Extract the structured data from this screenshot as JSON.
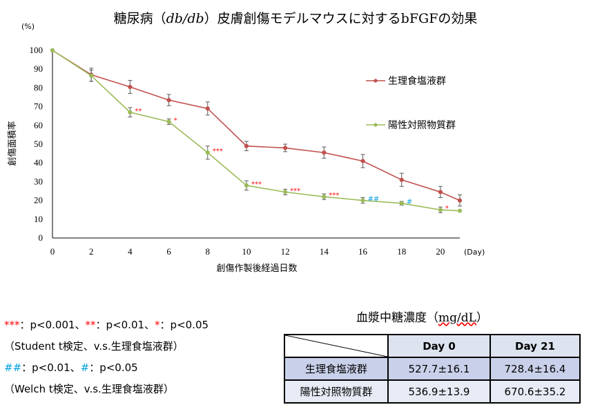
{
  "chart_data": {
    "type": "line",
    "title_pre": "糖尿病（",
    "title_italic": "db/db",
    "title_post": "）皮膚創傷モデルマウスに対するbFGFの効果",
    "xlabel": "創傷作製後経過日数",
    "ylabel": "創傷面積率",
    "x_unit": "(Day)",
    "y_unit": "(%)",
    "xlim": [
      0,
      21
    ],
    "ylim": [
      0,
      100
    ],
    "x_ticks": [
      0,
      2,
      4,
      6,
      8,
      10,
      12,
      14,
      16,
      18,
      20
    ],
    "y_ticks": [
      0,
      10,
      20,
      30,
      40,
      50,
      60,
      70,
      80,
      90,
      100
    ],
    "legend_position": "right",
    "series": [
      {
        "name": "生理食塩液群",
        "color": "#c0504d",
        "x": [
          0,
          2,
          4,
          6,
          8,
          10,
          12,
          14,
          16,
          18,
          20,
          21
        ],
        "y": [
          100,
          87,
          80.5,
          73.5,
          69,
          49,
          48,
          45.5,
          41,
          31,
          24.5,
          20
        ],
        "err": [
          0,
          3.5,
          3.5,
          3,
          3.5,
          2.5,
          2,
          3,
          3.5,
          3.5,
          3,
          3
        ]
      },
      {
        "name": "陽性対照物質群",
        "color": "#9bbb59",
        "x": [
          0,
          2,
          4,
          6,
          8,
          10,
          12,
          14,
          16,
          18,
          20,
          21
        ],
        "y": [
          100,
          86.5,
          67,
          62,
          45.5,
          28,
          24.5,
          22,
          20,
          18.5,
          15,
          14.5
        ],
        "err": [
          0,
          3,
          2.5,
          1.5,
          3.5,
          2.5,
          1.5,
          1.5,
          1.5,
          1,
          1.5,
          0
        ],
        "significance": [
          {
            "x": 4,
            "y": 67,
            "label": "**",
            "color": "#ff0000"
          },
          {
            "x": 6,
            "y": 62,
            "label": "*",
            "color": "#ff0000"
          },
          {
            "x": 8,
            "y": 45.5,
            "label": "***",
            "color": "#ff0000"
          },
          {
            "x": 10,
            "y": 28,
            "label": "***",
            "color": "#ff0000"
          },
          {
            "x": 12,
            "y": 24.5,
            "label": "***",
            "color": "#ff0000"
          },
          {
            "x": 14,
            "y": 22,
            "label": "***",
            "color": "#ff0000"
          },
          {
            "x": 16,
            "y": 20,
            "label": "##",
            "color": "#00a0e0"
          },
          {
            "x": 18,
            "y": 18.5,
            "label": "#",
            "color": "#00a0e0"
          },
          {
            "x": 20,
            "y": 15,
            "label": "*",
            "color": "#ff0000"
          }
        ]
      }
    ]
  },
  "notes": {
    "stars3": "***",
    "p1": "：p<0.001、",
    "stars2": "**",
    "p2": "：p<0.01、",
    "star1": "*",
    "p3": "：p<0.05",
    "test1": "（Student t検定、v.s.生理食塩液群）",
    "hash2": "##",
    "p4": "：p<0.01、",
    "hash1": "#",
    "p5": "：p<0.05",
    "test2": "（Welch t検定、v.s.生理食塩液群）"
  },
  "glucose_table": {
    "title_pre": "血漿中糖濃度（",
    "title_unit": "mg/dL",
    "title_post": "）",
    "headers": [
      "",
      "Day 0",
      "Day 21"
    ],
    "rows": [
      {
        "label": "生理食塩液群",
        "day0": "527.7±16.1",
        "day21": "728.4±16.4"
      },
      {
        "label": "陽性対照物質群",
        "day0": "536.9±13.9",
        "day21": "670.6±35.2"
      }
    ]
  }
}
